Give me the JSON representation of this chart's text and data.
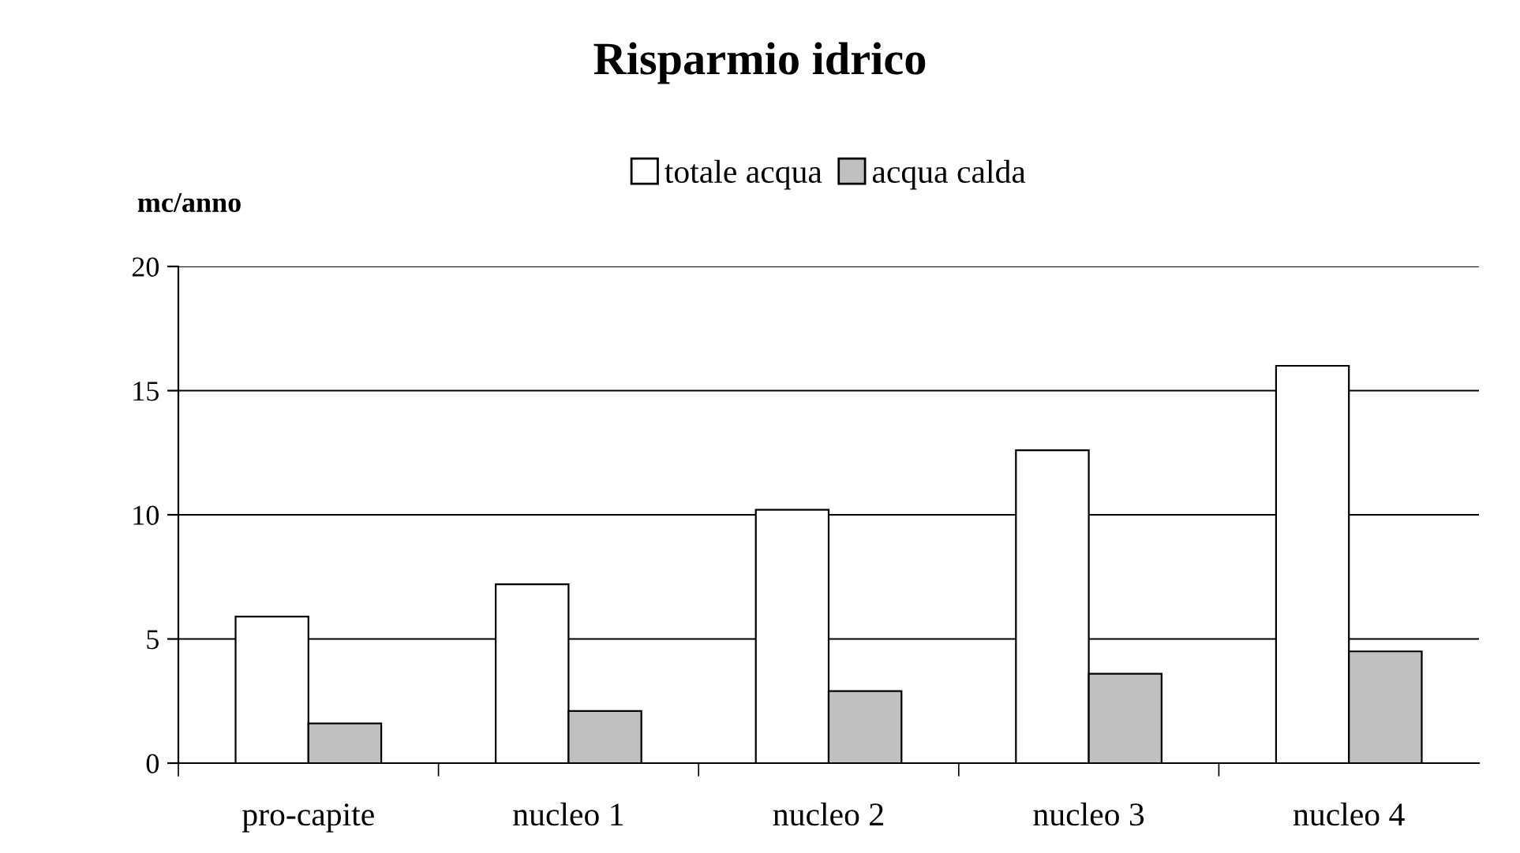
{
  "chart_data": {
    "type": "bar",
    "title": "Risparmio idrico",
    "ylabel": "mc/anno",
    "categories": [
      "pro-capite",
      "nucleo 1",
      "nucleo 2",
      "nucleo 3",
      "nucleo 4"
    ],
    "series": [
      {
        "name": "totale acqua",
        "color": "#ffffff",
        "values": [
          5.9,
          7.2,
          10.2,
          12.6,
          16
        ]
      },
      {
        "name": "acqua calda",
        "color": "#c0c0c0",
        "values": [
          1.6,
          2.1,
          2.9,
          3.6,
          4.5
        ]
      }
    ],
    "ylim": [
      0,
      20
    ],
    "yticks": [
      0,
      5,
      10,
      15,
      20
    ],
    "grid": "y",
    "legend": "top"
  }
}
